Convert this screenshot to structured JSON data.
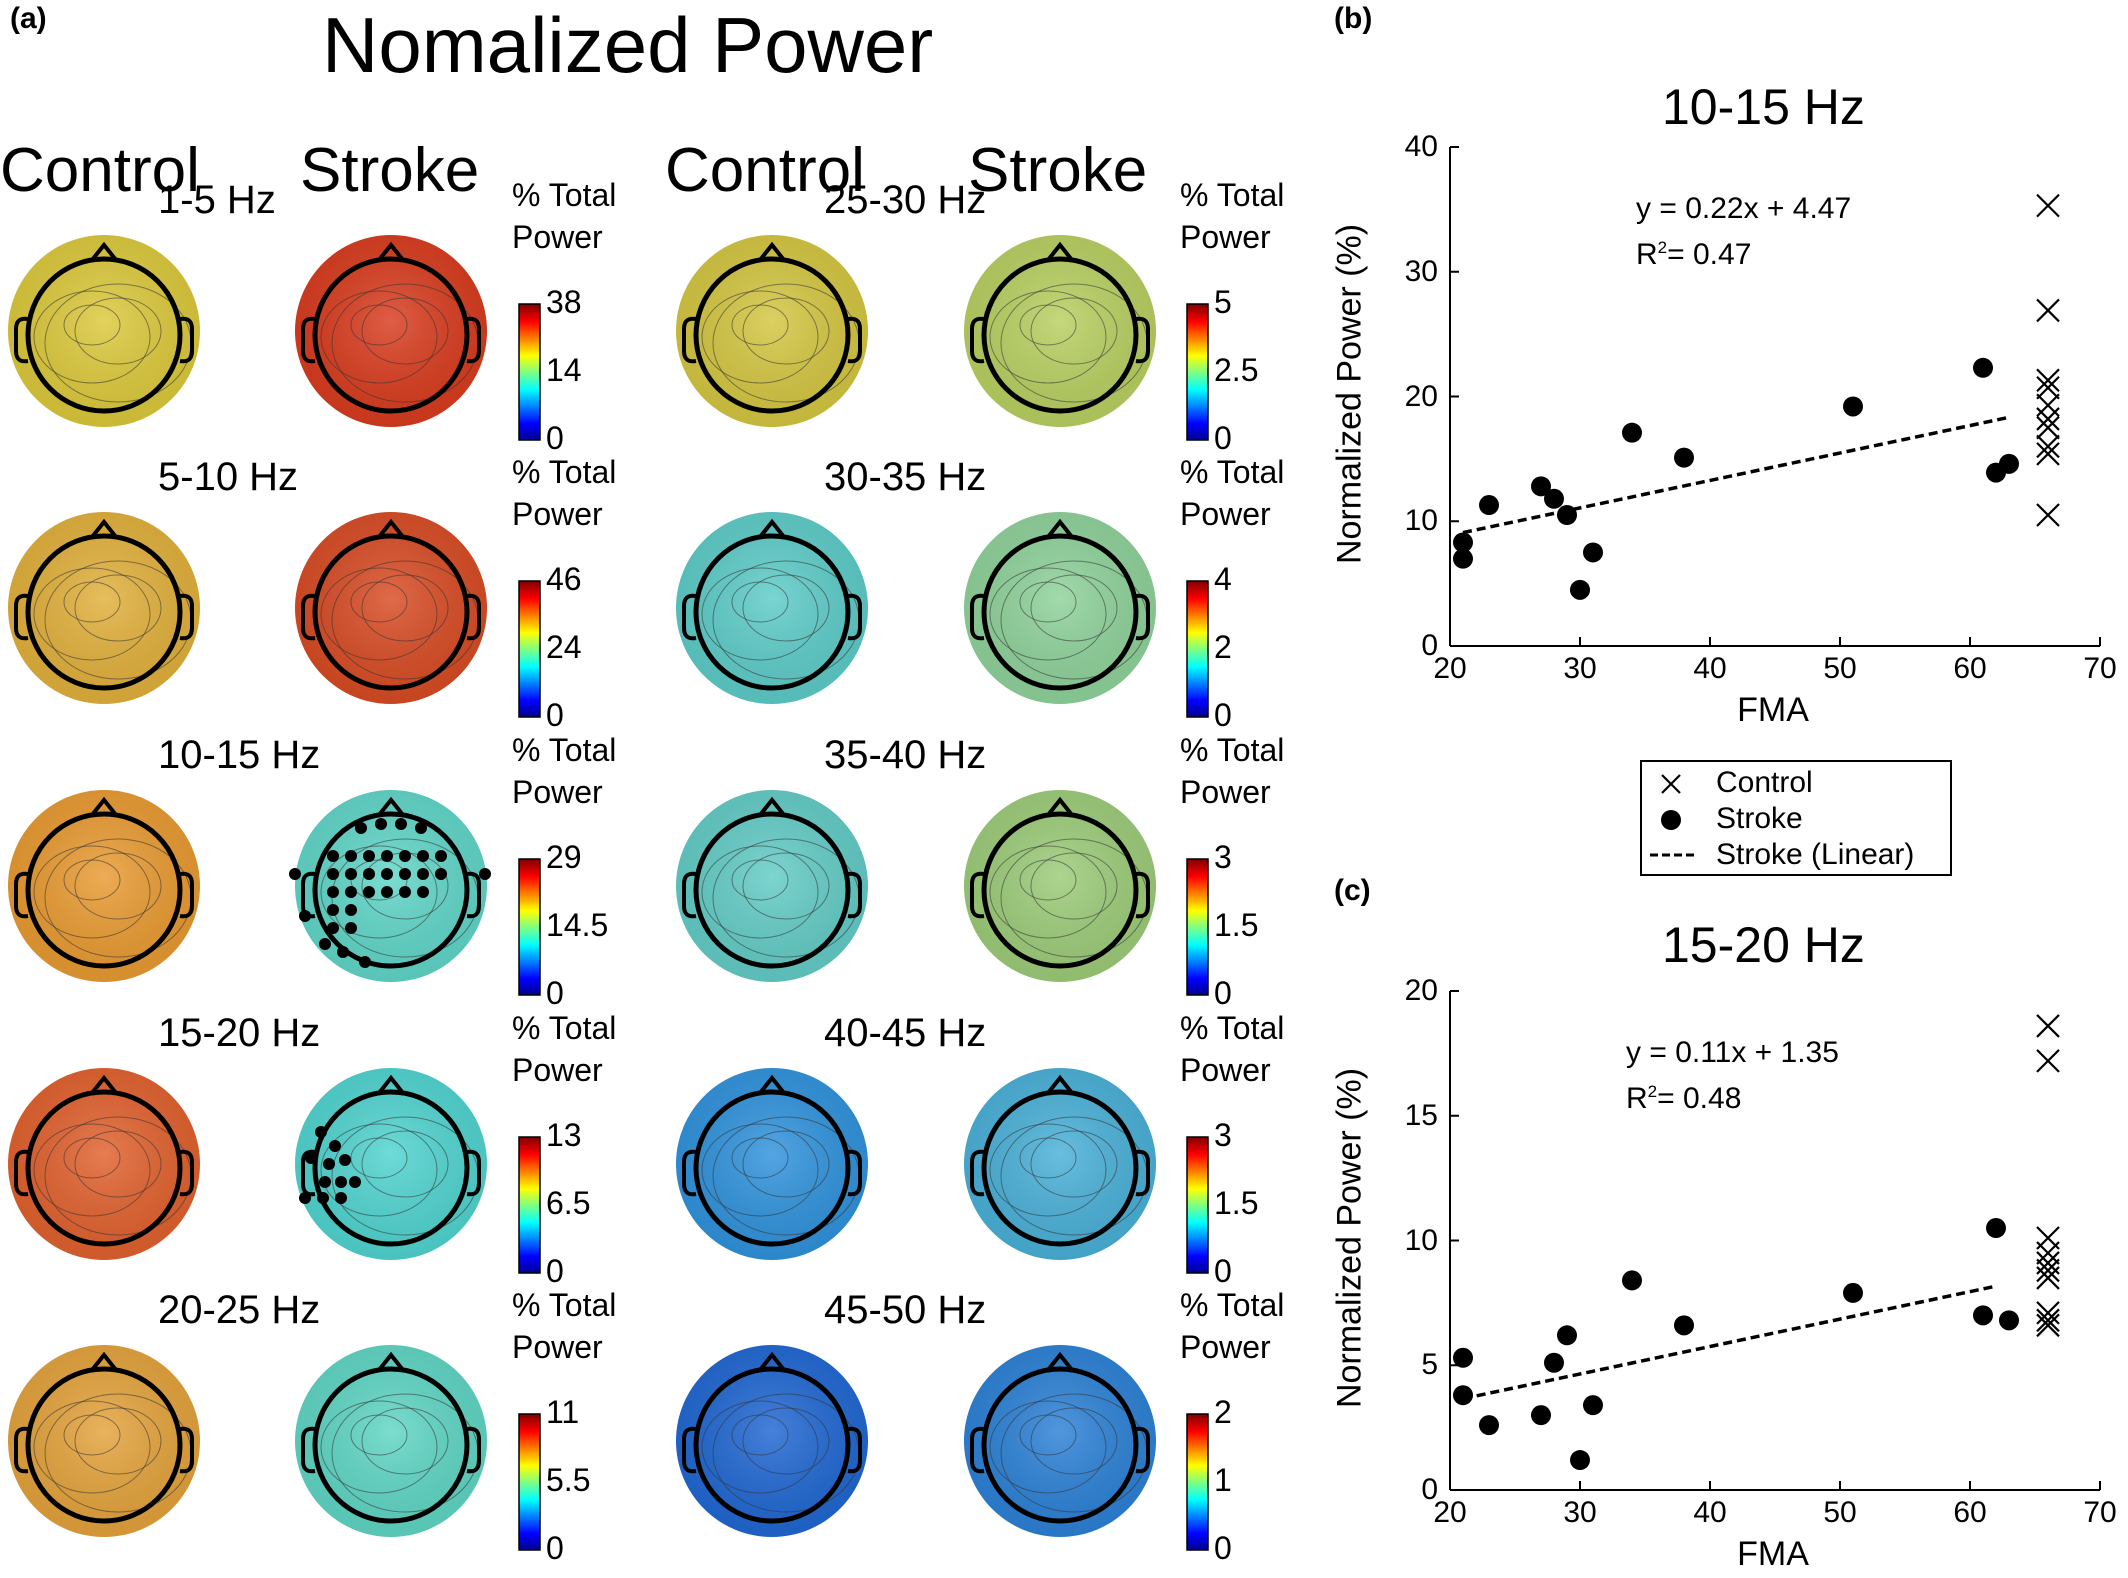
{
  "panel_labels": {
    "a": "(a)",
    "b": "(b)",
    "c": "(c)"
  },
  "main_title": "Nomalized Power",
  "column_headers": [
    "Control",
    "Stroke",
    "Control",
    "Stroke"
  ],
  "colorbar_title_line1": "% Total",
  "colorbar_title_line2": "Power",
  "bands": [
    {
      "label": "1-5 Hz",
      "ticks": [
        "38",
        "14",
        "0"
      ]
    },
    {
      "label": "5-10 Hz",
      "ticks": [
        "46",
        "24",
        "0"
      ]
    },
    {
      "label": "10-15 Hz",
      "ticks": [
        "29",
        "14.5",
        "0"
      ]
    },
    {
      "label": "15-20 Hz",
      "ticks": [
        "13",
        "6.5",
        "0"
      ]
    },
    {
      "label": "20-25 Hz",
      "ticks": [
        "11",
        "5.5",
        "0"
      ]
    },
    {
      "label": "25-30 Hz",
      "ticks": [
        "5",
        "2.5",
        "0"
      ]
    },
    {
      "label": "30-35 Hz",
      "ticks": [
        "4",
        "2",
        "0"
      ]
    },
    {
      "label": "35-40 Hz",
      "ticks": [
        "3",
        "1.5",
        "0"
      ]
    },
    {
      "label": "40-45 Hz",
      "ticks": [
        "3",
        "1.5",
        "0"
      ]
    },
    {
      "label": "45-50 Hz",
      "ticks": [
        "2",
        "1",
        "0"
      ]
    }
  ],
  "topo_colors": {
    "1-5 Hz": {
      "control": "#dcc93a",
      "stroke": "#d83a1c"
    },
    "5-10 Hz": {
      "control": "#e2b03a",
      "stroke": "#d84a22"
    },
    "10-15 Hz": {
      "control": "#e99a30",
      "stroke": "#5fd6c8"
    },
    "15-20 Hz": {
      "control": "#e1602c",
      "stroke": "#4fd4d0"
    },
    "20-25 Hz": {
      "control": "#e4a23a",
      "stroke": "#5ed6c4"
    },
    "25-30 Hz": {
      "control": "#d4c640",
      "stroke": "#b8d060"
    },
    "30-35 Hz": {
      "control": "#5cccc8",
      "stroke": "#8ed29a"
    },
    "35-40 Hz": {
      "control": "#62ccc6",
      "stroke": "#9ccc78"
    },
    "40-45 Hz": {
      "control": "#2e92dc",
      "stroke": "#48b0d8"
    },
    "45-50 Hz": {
      "control": "#1e66d2",
      "stroke": "#2a80d6"
    }
  },
  "legend": {
    "control": "Control",
    "stroke": "Stroke",
    "linear": "Stroke (Linear)"
  },
  "chart_data": [
    {
      "type": "scatter",
      "title": "10-15 Hz",
      "xlabel": "FMA",
      "ylabel": "Normalized Power (%)",
      "xlim": [
        20,
        70
      ],
      "ylim": [
        0,
        40
      ],
      "xticks": [
        "20",
        "30",
        "40",
        "50",
        "60",
        "70"
      ],
      "yticks": [
        "0",
        "10",
        "20",
        "30",
        "40"
      ],
      "equation": "y = 0.22x + 4.47",
      "r2_prefix": "R",
      "r2_sup": "2",
      "r2_value": "= 0.47",
      "fit": {
        "slope": 0.22,
        "intercept": 4.47,
        "x_range": [
          21,
          63
        ]
      },
      "series": [
        {
          "name": "Stroke",
          "marker": "circle",
          "points": [
            [
              21,
              8.3
            ],
            [
              21,
              7.0
            ],
            [
              23,
              11.3
            ],
            [
              27,
              12.8
            ],
            [
              28,
              11.8
            ],
            [
              29,
              10.5
            ],
            [
              30,
              4.5
            ],
            [
              31,
              7.5
            ],
            [
              34,
              17.1
            ],
            [
              38,
              15.1
            ],
            [
              51,
              19.2
            ],
            [
              61,
              22.3
            ],
            [
              62,
              13.9
            ],
            [
              63,
              14.6
            ]
          ]
        },
        {
          "name": "Control",
          "marker": "x",
          "points": [
            [
              66,
              35.3
            ],
            [
              66,
              26.9
            ],
            [
              66,
              21.3
            ],
            [
              66,
              20.7
            ],
            [
              66,
              19.3
            ],
            [
              66,
              18.2
            ],
            [
              66,
              17.5
            ],
            [
              66,
              16.0
            ],
            [
              66,
              15.4
            ],
            [
              66,
              10.5
            ]
          ]
        }
      ]
    },
    {
      "type": "scatter",
      "title": "15-20 Hz",
      "xlabel": "FMA",
      "ylabel": "Normalized Power (%)",
      "xlim": [
        20,
        70
      ],
      "ylim": [
        0,
        20
      ],
      "xticks": [
        "20",
        "30",
        "40",
        "50",
        "60",
        "70"
      ],
      "yticks": [
        "0",
        "5",
        "10",
        "15",
        "20"
      ],
      "equation": "y = 0.11x + 1.35",
      "r2_prefix": "R",
      "r2_sup": "2",
      "r2_value": "= 0.48",
      "fit": {
        "slope": 0.11,
        "intercept": 1.35,
        "x_range": [
          21,
          62
        ]
      },
      "series": [
        {
          "name": "Stroke",
          "marker": "circle",
          "points": [
            [
              21,
              5.3
            ],
            [
              21,
              3.8
            ],
            [
              23,
              2.6
            ],
            [
              27,
              3.0
            ],
            [
              28,
              5.1
            ],
            [
              29,
              6.2
            ],
            [
              30,
              1.2
            ],
            [
              31,
              3.4
            ],
            [
              34,
              8.4
            ],
            [
              38,
              6.6
            ],
            [
              51,
              7.9
            ],
            [
              61,
              7.0
            ],
            [
              62,
              10.5
            ],
            [
              63,
              6.8
            ]
          ]
        },
        {
          "name": "Control",
          "marker": "x",
          "points": [
            [
              66,
              18.6
            ],
            [
              66,
              17.2
            ],
            [
              66,
              10.1
            ],
            [
              66,
              9.5
            ],
            [
              66,
              9.1
            ],
            [
              66,
              8.8
            ],
            [
              66,
              8.5
            ],
            [
              66,
              7.1
            ],
            [
              66,
              6.8
            ],
            [
              66,
              6.6
            ]
          ]
        }
      ]
    }
  ]
}
